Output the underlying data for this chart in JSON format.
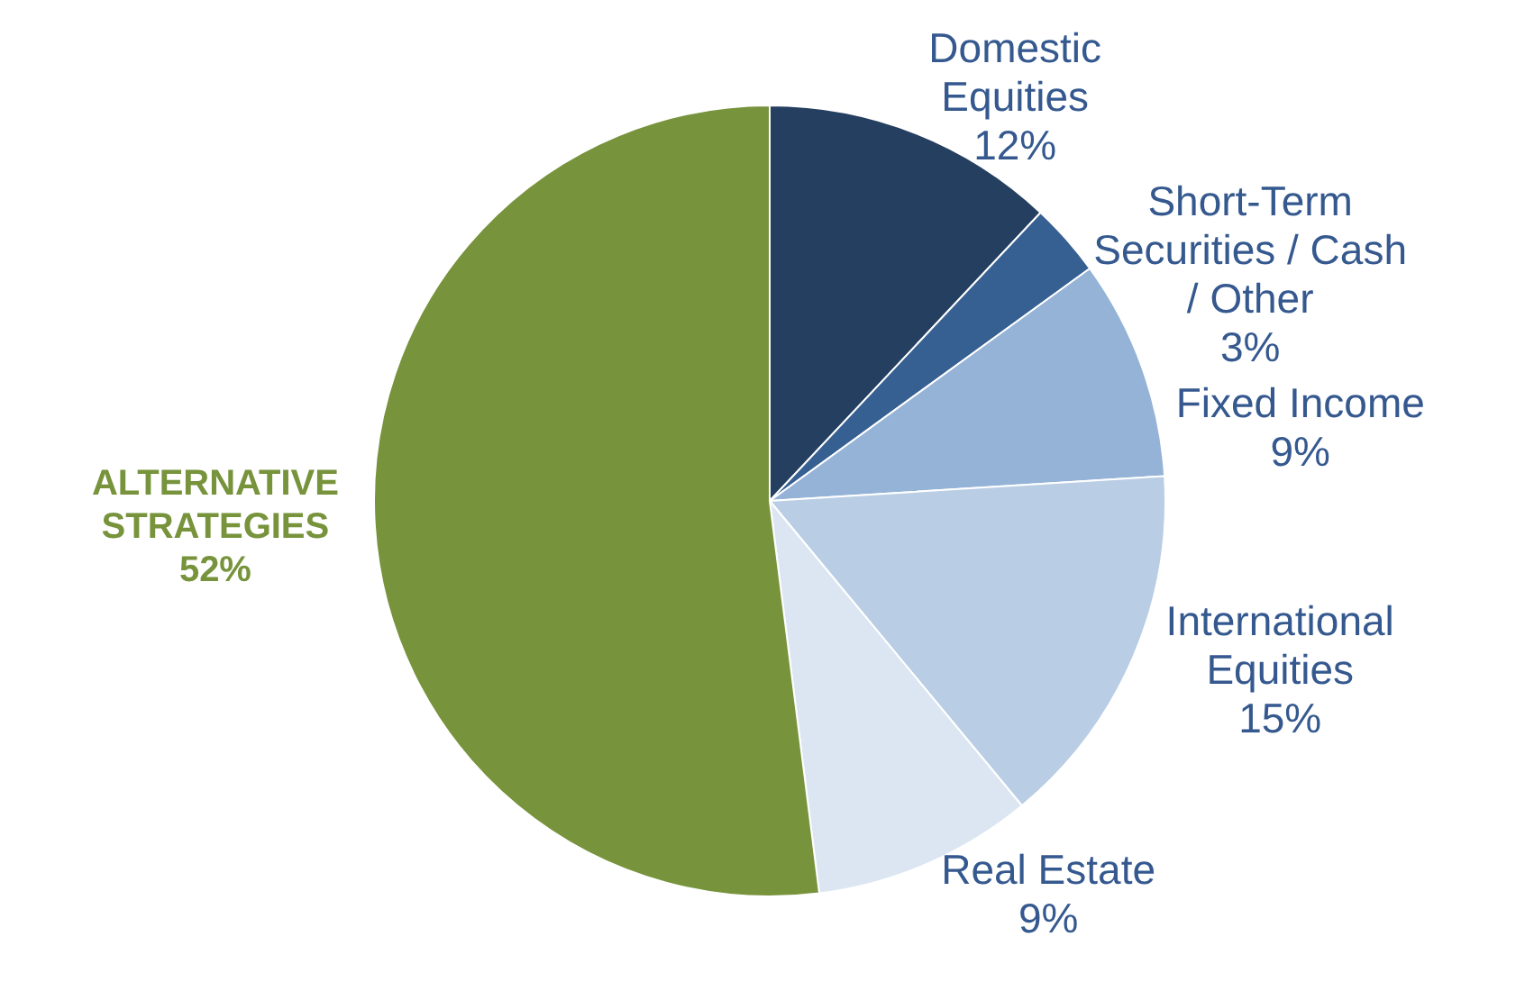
{
  "chart_data": {
    "type": "pie",
    "categories": [
      "Domestic Equities",
      "Short-Term Securities / Cash / Other",
      "Fixed Income",
      "International Equities",
      "Real Estate",
      "ALTERNATIVE STRATEGIES"
    ],
    "values": [
      12,
      3,
      9,
      15,
      9,
      52
    ],
    "value_labels": [
      "12%",
      "3%",
      "9%",
      "15%",
      "9%",
      "52%"
    ],
    "colors": [
      "#243f60",
      "#376092",
      "#95b3d7",
      "#b9cde5",
      "#dce6f2",
      "#77933c"
    ],
    "legend": false
  }
}
